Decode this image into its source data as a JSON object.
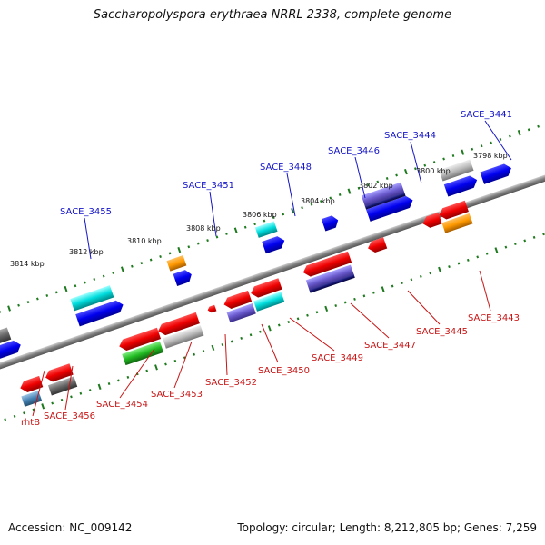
{
  "title": "Saccharopolyspora erythraea NRRL 2338, complete genome",
  "footer": {
    "accession": "Accession: NC_009142",
    "summary": "Topology: circular; Length: 8,212,805 bp; Genes: 7,259"
  },
  "colors": {
    "backbone": "#8a8a8a",
    "scale_tick": "#1e7a1e",
    "label_top": "#1414c8",
    "label_bottom": "#c81414"
  },
  "ruler_labels": [
    "3814 kbp",
    "3812 kbp",
    "3810 kbp",
    "3808 kbp",
    "3806 kbp",
    "3804 kbp",
    "3802 kbp",
    "3800 kbp",
    "3798 kbp"
  ],
  "genes_top": [
    "SACE_3455",
    "SACE_3451",
    "SACE_3448",
    "SACE_3446",
    "SACE_3444",
    "SACE_3441"
  ],
  "genes_bottom": [
    "rhtB",
    "SACE_3456",
    "SACE_3454",
    "SACE_3453",
    "SACE_3452",
    "SACE_3450",
    "SACE_3449",
    "SACE_3447",
    "SACE_3445",
    "SACE_3443"
  ]
}
